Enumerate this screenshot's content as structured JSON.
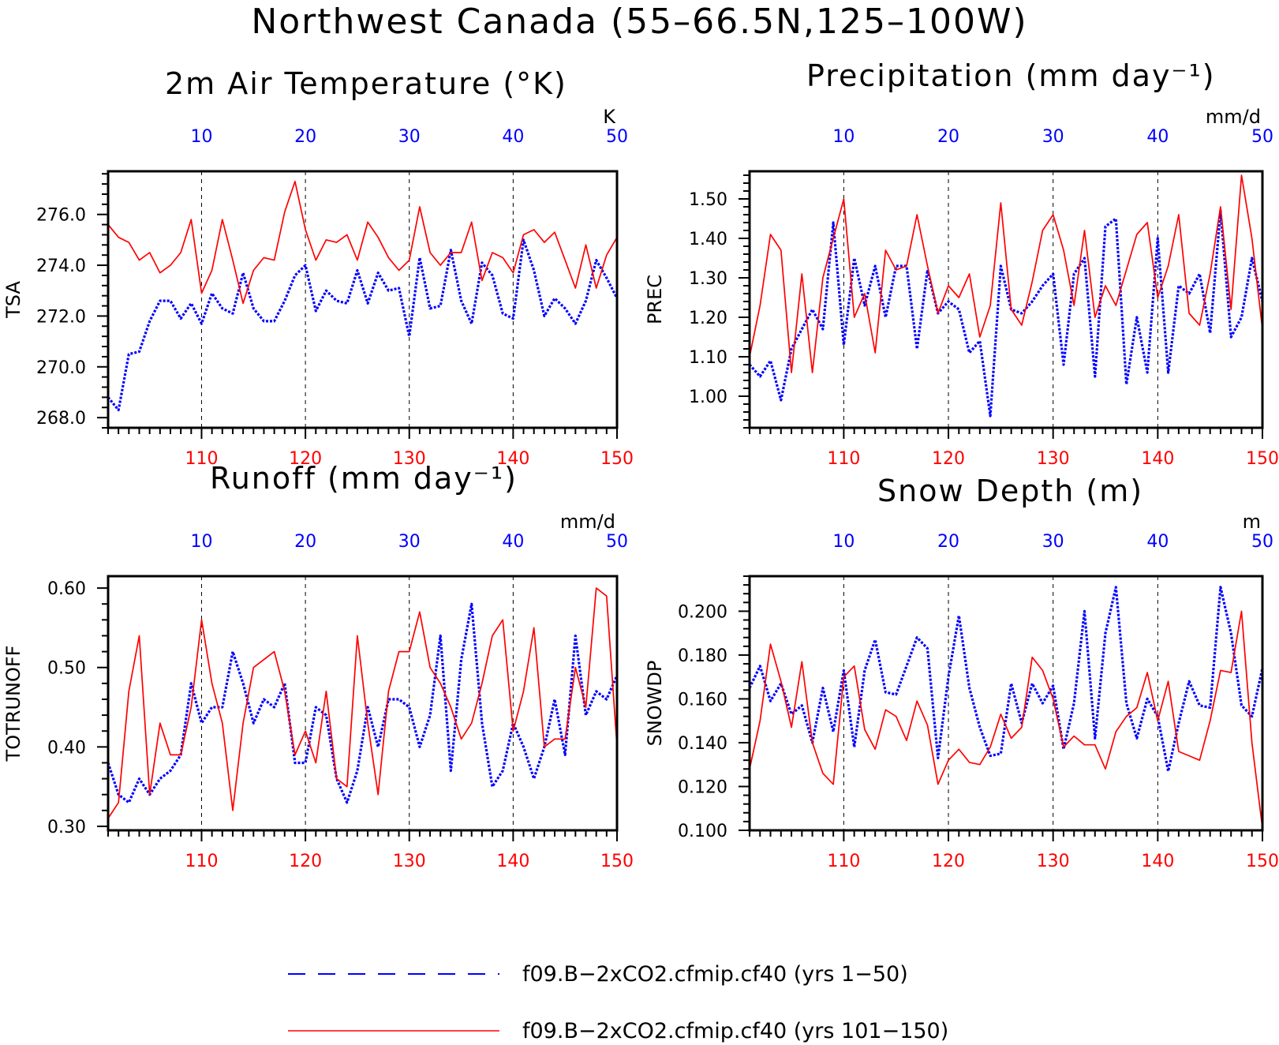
{
  "figure": {
    "title": "Northwest Canada (55–66.5N,125–100W)"
  },
  "colors": {
    "series_a": "#0000ff",
    "series_b": "#ff0000",
    "axis": "#000000"
  },
  "legend": [
    {
      "label": "f09.B−2xCO2.cfmip.cf40 (yrs 1−50)",
      "style": "dashed",
      "color": "#0000ff"
    },
    {
      "label": "f09.B−2xCO2.cfmip.cf40 (yrs 101−150)",
      "style": "solid",
      "color": "#ff0000"
    }
  ],
  "chart_data": [
    {
      "type": "line",
      "title": "2m Air Temperature (°K)",
      "ylabel": "TSA",
      "units": "K",
      "ylim": [
        267.6,
        277.7
      ],
      "yticks": [
        268.0,
        270.0,
        272.0,
        274.0,
        276.0
      ],
      "ytick_labels": [
        "268.0",
        "270.0",
        "272.0",
        "274.0",
        "276.0"
      ],
      "top_axis": {
        "range": [
          1,
          50
        ],
        "ticks": [
          10,
          20,
          30,
          40,
          50
        ]
      },
      "bottom_axis": {
        "range": [
          101,
          150
        ],
        "ticks": [
          110,
          120,
          130,
          140,
          150
        ]
      },
      "series": [
        {
          "name": "f09.B−2xCO2.cfmip.cf40 (yrs 1−50)",
          "axis": "top",
          "style": "dotted",
          "color": "#0000ff",
          "x": [
            1,
            2,
            3,
            4,
            5,
            6,
            7,
            8,
            9,
            10,
            11,
            12,
            13,
            14,
            15,
            16,
            17,
            18,
            19,
            20,
            21,
            22,
            23,
            24,
            25,
            26,
            27,
            28,
            29,
            30,
            31,
            32,
            33,
            34,
            35,
            36,
            37,
            38,
            39,
            40,
            41,
            42,
            43,
            44,
            45,
            46,
            47,
            48,
            49,
            50
          ],
          "values": [
            268.8,
            268.3,
            270.5,
            270.6,
            271.8,
            272.6,
            272.6,
            271.9,
            272.5,
            271.7,
            272.9,
            272.3,
            272.1,
            273.7,
            272.3,
            271.8,
            271.8,
            272.6,
            273.6,
            274.0,
            272.2,
            273.0,
            272.6,
            272.5,
            273.8,
            272.5,
            273.7,
            273.0,
            273.1,
            271.2,
            274.3,
            272.3,
            272.4,
            274.6,
            272.6,
            271.7,
            274.1,
            273.6,
            272.1,
            271.9,
            275.0,
            273.8,
            272.0,
            272.7,
            272.3,
            271.7,
            272.6,
            274.2,
            273.5,
            272.7
          ]
        },
        {
          "name": "f09.B−2xCO2.cfmip.cf40 (yrs 101−150)",
          "axis": "bottom",
          "style": "solid",
          "color": "#ff0000",
          "x": [
            101,
            102,
            103,
            104,
            105,
            106,
            107,
            108,
            109,
            110,
            111,
            112,
            113,
            114,
            115,
            116,
            117,
            118,
            119,
            120,
            121,
            122,
            123,
            124,
            125,
            126,
            127,
            128,
            129,
            130,
            131,
            132,
            133,
            134,
            135,
            136,
            137,
            138,
            139,
            140,
            141,
            142,
            143,
            144,
            145,
            146,
            147,
            148,
            149,
            150
          ],
          "values": [
            275.6,
            275.1,
            274.9,
            274.2,
            274.5,
            273.7,
            274.0,
            274.5,
            275.8,
            272.9,
            273.8,
            275.8,
            274.2,
            272.5,
            273.8,
            274.3,
            274.2,
            276.1,
            277.3,
            275.4,
            274.2,
            275.0,
            274.9,
            275.2,
            274.2,
            275.7,
            275.1,
            274.3,
            273.8,
            274.2,
            276.3,
            274.5,
            274.0,
            274.5,
            274.5,
            275.7,
            273.4,
            274.5,
            274.3,
            273.7,
            275.2,
            275.4,
            274.9,
            275.3,
            274.2,
            273.1,
            274.8,
            273.1,
            274.4,
            275.1
          ]
        }
      ]
    },
    {
      "type": "line",
      "title": "Precipitation (mm day⁻¹)",
      "ylabel": "PREC",
      "units": "mm/d",
      "ylim": [
        0.92,
        1.57
      ],
      "yticks": [
        1.0,
        1.1,
        1.2,
        1.3,
        1.4,
        1.5
      ],
      "ytick_labels": [
        "1.00",
        "1.10",
        "1.20",
        "1.30",
        "1.40",
        "1.50"
      ],
      "top_axis": {
        "range": [
          1,
          50
        ],
        "ticks": [
          10,
          20,
          30,
          40,
          50
        ]
      },
      "bottom_axis": {
        "range": [
          101,
          150
        ],
        "ticks": [
          110,
          120,
          130,
          140,
          150
        ]
      },
      "series": [
        {
          "name": "f09.B−2xCO2.cfmip.cf40 (yrs 1−50)",
          "axis": "top",
          "style": "dotted",
          "color": "#0000ff",
          "x": [
            1,
            2,
            3,
            4,
            5,
            6,
            7,
            8,
            9,
            10,
            11,
            12,
            13,
            14,
            15,
            16,
            17,
            18,
            19,
            20,
            21,
            22,
            23,
            24,
            25,
            26,
            27,
            28,
            29,
            30,
            31,
            32,
            33,
            34,
            35,
            36,
            37,
            38,
            39,
            40,
            41,
            42,
            43,
            44,
            45,
            46,
            47,
            48,
            49,
            50
          ],
          "values": [
            1.08,
            1.05,
            1.09,
            0.99,
            1.12,
            1.17,
            1.22,
            1.17,
            1.44,
            1.13,
            1.35,
            1.23,
            1.33,
            1.2,
            1.33,
            1.33,
            1.12,
            1.32,
            1.21,
            1.24,
            1.22,
            1.11,
            1.14,
            0.95,
            1.33,
            1.22,
            1.21,
            1.24,
            1.28,
            1.31,
            1.08,
            1.31,
            1.35,
            1.05,
            1.43,
            1.45,
            1.03,
            1.2,
            1.06,
            1.4,
            1.06,
            1.28,
            1.26,
            1.31,
            1.16,
            1.47,
            1.15,
            1.2,
            1.35,
            1.24
          ]
        },
        {
          "name": "f09.B−2xCO2.cfmip.cf40 (yrs 101−150)",
          "axis": "bottom",
          "style": "solid",
          "color": "#ff0000",
          "x": [
            101,
            102,
            103,
            104,
            105,
            106,
            107,
            108,
            109,
            110,
            111,
            112,
            113,
            114,
            115,
            116,
            117,
            118,
            119,
            120,
            121,
            122,
            123,
            124,
            125,
            126,
            127,
            128,
            129,
            130,
            131,
            132,
            133,
            134,
            135,
            136,
            137,
            138,
            139,
            140,
            141,
            142,
            143,
            144,
            145,
            146,
            147,
            148,
            149,
            150
          ],
          "values": [
            1.1,
            1.23,
            1.41,
            1.37,
            1.06,
            1.31,
            1.06,
            1.3,
            1.4,
            1.5,
            1.2,
            1.26,
            1.11,
            1.37,
            1.32,
            1.33,
            1.46,
            1.33,
            1.21,
            1.28,
            1.25,
            1.31,
            1.15,
            1.23,
            1.49,
            1.22,
            1.18,
            1.29,
            1.42,
            1.46,
            1.37,
            1.23,
            1.42,
            1.2,
            1.28,
            1.23,
            1.32,
            1.41,
            1.44,
            1.25,
            1.33,
            1.46,
            1.21,
            1.18,
            1.31,
            1.48,
            1.22,
            1.56,
            1.4,
            1.17
          ]
        }
      ]
    },
    {
      "type": "line",
      "title": "Runoff (mm day⁻¹)",
      "ylabel": "TOTRUNOFF",
      "units": "mm/d",
      "ylim": [
        0.295,
        0.615
      ],
      "yticks": [
        0.3,
        0.4,
        0.5,
        0.6
      ],
      "ytick_labels": [
        "0.30",
        "0.40",
        "0.50",
        "0.60"
      ],
      "top_axis": {
        "range": [
          1,
          50
        ],
        "ticks": [
          10,
          20,
          30,
          40,
          50
        ]
      },
      "bottom_axis": {
        "range": [
          101,
          150
        ],
        "ticks": [
          110,
          120,
          130,
          140,
          150
        ]
      },
      "series": [
        {
          "name": "f09.B−2xCO2.cfmip.cf40 (yrs 1−50)",
          "axis": "top",
          "style": "dotted",
          "color": "#0000ff",
          "x": [
            1,
            2,
            3,
            4,
            5,
            6,
            7,
            8,
            9,
            10,
            11,
            12,
            13,
            14,
            15,
            16,
            17,
            18,
            19,
            20,
            21,
            22,
            23,
            24,
            25,
            26,
            27,
            28,
            29,
            30,
            31,
            32,
            33,
            34,
            35,
            36,
            37,
            38,
            39,
            40,
            41,
            42,
            43,
            44,
            45,
            46,
            47,
            48,
            49,
            50
          ],
          "values": [
            0.38,
            0.34,
            0.33,
            0.36,
            0.34,
            0.36,
            0.37,
            0.39,
            0.48,
            0.43,
            0.45,
            0.45,
            0.52,
            0.48,
            0.43,
            0.46,
            0.45,
            0.48,
            0.38,
            0.38,
            0.45,
            0.44,
            0.36,
            0.33,
            0.37,
            0.45,
            0.4,
            0.46,
            0.46,
            0.45,
            0.4,
            0.44,
            0.54,
            0.37,
            0.51,
            0.58,
            0.43,
            0.35,
            0.37,
            0.43,
            0.4,
            0.36,
            0.4,
            0.46,
            0.39,
            0.54,
            0.44,
            0.47,
            0.46,
            0.49
          ]
        },
        {
          "name": "f09.B−2xCO2.cfmip.cf40 (yrs 101−150)",
          "axis": "bottom",
          "style": "solid",
          "color": "#ff0000",
          "x": [
            101,
            102,
            103,
            104,
            105,
            106,
            107,
            108,
            109,
            110,
            111,
            112,
            113,
            114,
            115,
            116,
            117,
            118,
            119,
            120,
            121,
            122,
            123,
            124,
            125,
            126,
            127,
            128,
            129,
            130,
            131,
            132,
            133,
            134,
            135,
            136,
            137,
            138,
            139,
            140,
            141,
            142,
            143,
            144,
            145,
            146,
            147,
            148,
            149,
            150
          ],
          "values": [
            0.31,
            0.33,
            0.47,
            0.54,
            0.34,
            0.43,
            0.39,
            0.39,
            0.45,
            0.56,
            0.48,
            0.43,
            0.32,
            0.43,
            0.5,
            0.51,
            0.52,
            0.47,
            0.39,
            0.42,
            0.38,
            0.47,
            0.36,
            0.35,
            0.54,
            0.43,
            0.34,
            0.47,
            0.52,
            0.52,
            0.57,
            0.5,
            0.48,
            0.45,
            0.41,
            0.43,
            0.48,
            0.54,
            0.56,
            0.42,
            0.47,
            0.55,
            0.4,
            0.41,
            0.41,
            0.5,
            0.45,
            0.6,
            0.59,
            0.4
          ]
        }
      ]
    },
    {
      "type": "line",
      "title": "Snow Depth (m)",
      "ylabel": "SNOWDP",
      "units": "m",
      "ylim": [
        0.1,
        0.216
      ],
      "yticks": [
        0.1,
        0.12,
        0.14,
        0.16,
        0.18,
        0.2
      ],
      "ytick_labels": [
        "0.100",
        "0.120",
        "0.140",
        "0.160",
        "0.180",
        "0.200"
      ],
      "top_axis": {
        "range": [
          1,
          50
        ],
        "ticks": [
          10,
          20,
          30,
          40,
          50
        ]
      },
      "bottom_axis": {
        "range": [
          101,
          150
        ],
        "ticks": [
          110,
          120,
          130,
          140,
          150
        ]
      },
      "series": [
        {
          "name": "f09.B−2xCO2.cfmip.cf40 (yrs 1−50)",
          "axis": "top",
          "style": "dotted",
          "color": "#0000ff",
          "x": [
            1,
            2,
            3,
            4,
            5,
            6,
            7,
            8,
            9,
            10,
            11,
            12,
            13,
            14,
            15,
            16,
            17,
            18,
            19,
            20,
            21,
            22,
            23,
            24,
            25,
            26,
            27,
            28,
            29,
            30,
            31,
            32,
            33,
            34,
            35,
            36,
            37,
            38,
            39,
            40,
            41,
            42,
            43,
            44,
            45,
            46,
            47,
            48,
            49,
            50
          ],
          "values": [
            0.165,
            0.175,
            0.159,
            0.167,
            0.153,
            0.157,
            0.14,
            0.165,
            0.145,
            0.173,
            0.138,
            0.173,
            0.187,
            0.163,
            0.162,
            0.175,
            0.188,
            0.183,
            0.133,
            0.17,
            0.198,
            0.165,
            0.147,
            0.134,
            0.135,
            0.167,
            0.149,
            0.167,
            0.158,
            0.166,
            0.137,
            0.158,
            0.2,
            0.142,
            0.19,
            0.211,
            0.158,
            0.142,
            0.16,
            0.152,
            0.127,
            0.149,
            0.168,
            0.157,
            0.156,
            0.211,
            0.19,
            0.157,
            0.152,
            0.174
          ]
        },
        {
          "name": "f09.B−2xCO2.cfmip.cf40 (yrs 101−150)",
          "axis": "bottom",
          "style": "solid",
          "color": "#ff0000",
          "x": [
            101,
            102,
            103,
            104,
            105,
            106,
            107,
            108,
            109,
            110,
            111,
            112,
            113,
            114,
            115,
            116,
            117,
            118,
            119,
            120,
            121,
            122,
            123,
            124,
            125,
            126,
            127,
            128,
            129,
            130,
            131,
            132,
            133,
            134,
            135,
            136,
            137,
            138,
            139,
            140,
            141,
            142,
            143,
            144,
            145,
            146,
            147,
            148,
            149,
            150
          ],
          "values": [
            0.128,
            0.15,
            0.185,
            0.168,
            0.147,
            0.177,
            0.14,
            0.126,
            0.121,
            0.17,
            0.175,
            0.146,
            0.137,
            0.155,
            0.152,
            0.141,
            0.159,
            0.148,
            0.121,
            0.132,
            0.137,
            0.131,
            0.13,
            0.138,
            0.153,
            0.142,
            0.147,
            0.179,
            0.173,
            0.16,
            0.138,
            0.143,
            0.139,
            0.139,
            0.128,
            0.145,
            0.152,
            0.156,
            0.172,
            0.15,
            0.168,
            0.136,
            0.134,
            0.132,
            0.15,
            0.173,
            0.172,
            0.2,
            0.14,
            0.101
          ]
        }
      ]
    }
  ]
}
